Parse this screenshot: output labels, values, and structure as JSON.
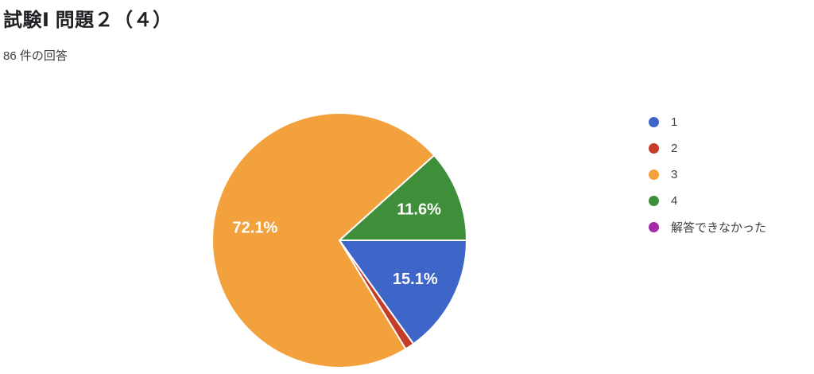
{
  "header": {
    "title": "試験Ⅰ 問題２（４）",
    "subtitle": "86 件の回答"
  },
  "chart_data": {
    "type": "pie",
    "title": "試験Ⅰ 問題２（４）",
    "subtitle": "86 件の回答",
    "total_responses": 86,
    "start_angle_deg": 0,
    "direction": "clockwise",
    "legend_position": "right",
    "label_color": "#ffffff",
    "slice_border_color": "#ffffff",
    "series": [
      {
        "name": "1",
        "value": 13,
        "percent": 15.1,
        "percent_label": "15.1%",
        "show_label": true,
        "color": "#3e66c9"
      },
      {
        "name": "2",
        "value": 1,
        "percent": 1.2,
        "percent_label": "",
        "show_label": false,
        "color": "#c53c28"
      },
      {
        "name": "3",
        "value": 62,
        "percent": 72.1,
        "percent_label": "72.1%",
        "show_label": true,
        "color": "#f2a13d"
      },
      {
        "name": "4",
        "value": 10,
        "percent": 11.6,
        "percent_label": "11.6%",
        "show_label": true,
        "color": "#3e8e3a"
      },
      {
        "name": "解答できなかった",
        "value": 0,
        "percent": 0,
        "percent_label": "",
        "show_label": false,
        "color": "#a32ba8"
      }
    ]
  },
  "legend": {
    "items": [
      {
        "label": "1"
      },
      {
        "label": "2"
      },
      {
        "label": "3"
      },
      {
        "label": "4"
      },
      {
        "label": "解答できなかった"
      }
    ]
  }
}
